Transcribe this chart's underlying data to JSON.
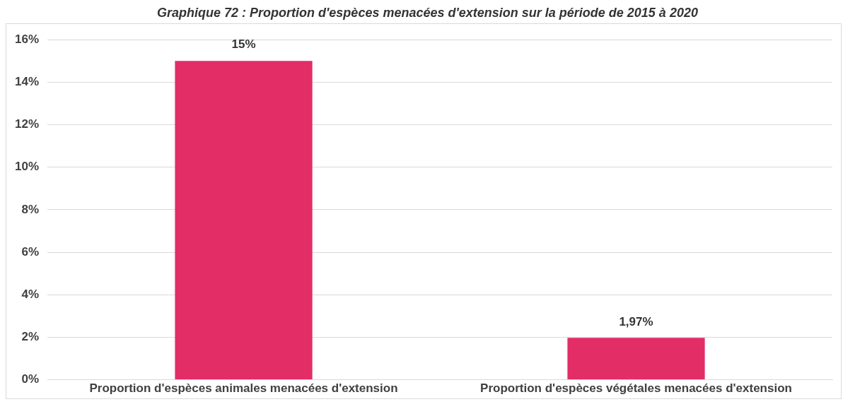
{
  "chart_data": {
    "type": "bar",
    "title": "Graphique 72 : Proportion d'espèces menacées d'extension sur la période de 2015 à 2020",
    "categories": [
      "Proportion d'espèces animales menacées d'extension",
      "Proportion d'espèces végétales menacées d'extension"
    ],
    "values": [
      15,
      1.97
    ],
    "value_labels": [
      "15%",
      "1,97%"
    ],
    "color": "#e22d67",
    "ylim": [
      0,
      16
    ],
    "yticks": [
      {
        "value": 0,
        "label": "0%"
      },
      {
        "value": 2,
        "label": "2%"
      },
      {
        "value": 4,
        "label": "4%"
      },
      {
        "value": 6,
        "label": "6%"
      },
      {
        "value": 8,
        "label": "8%"
      },
      {
        "value": 10,
        "label": "10%"
      },
      {
        "value": 12,
        "label": "12%"
      },
      {
        "value": 14,
        "label": "14%"
      },
      {
        "value": 16,
        "label": "16%"
      }
    ],
    "grid": "y",
    "legend": false
  }
}
